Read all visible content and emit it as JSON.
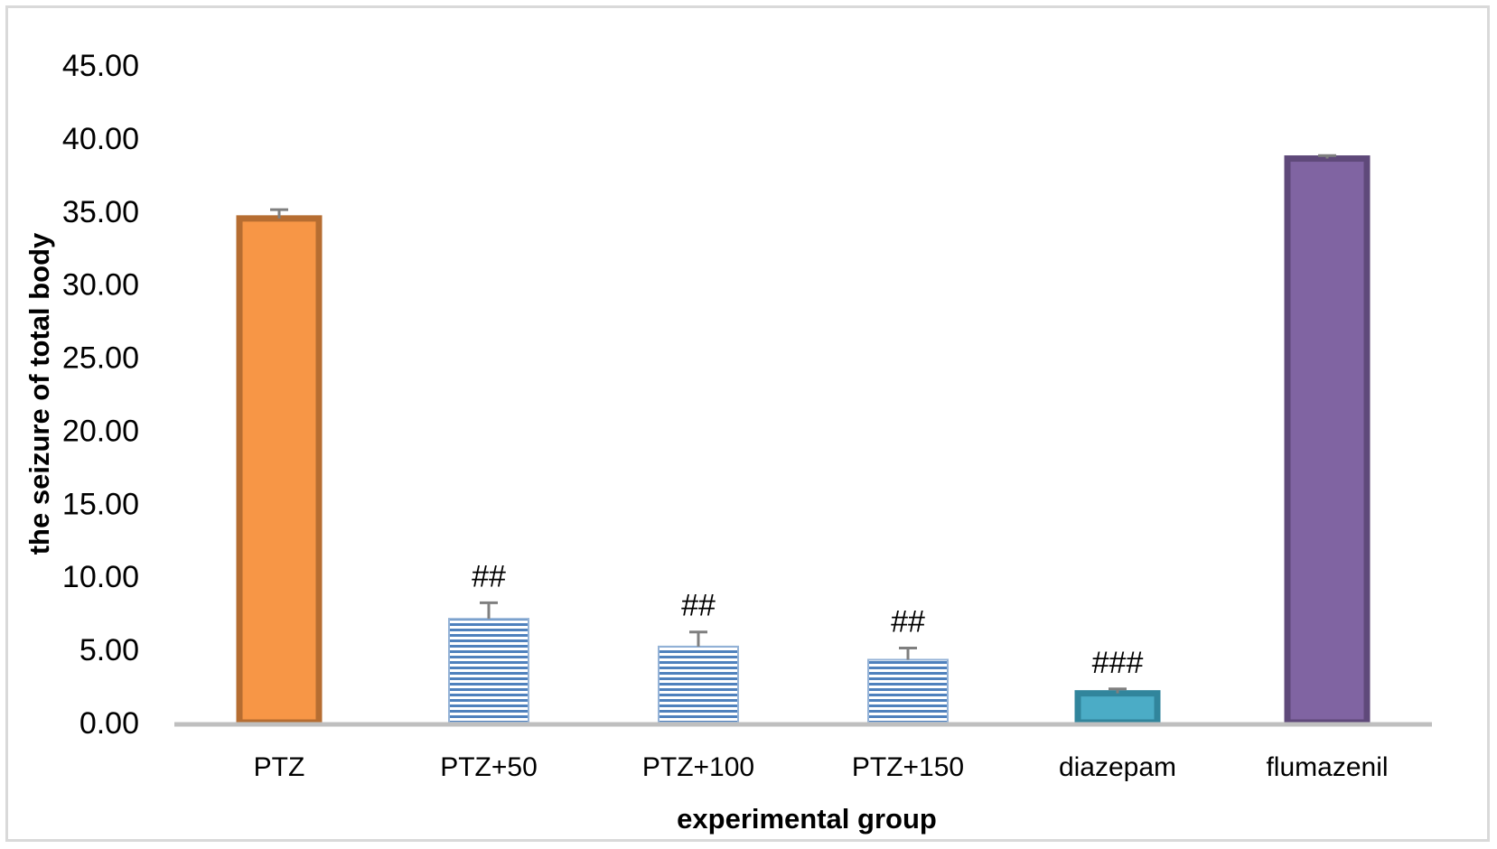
{
  "chart_data": {
    "type": "bar",
    "xlabel": "experimental group",
    "ylabel": "the seizure of total body",
    "ylim": [
      0,
      45
    ],
    "yticks": [
      "0.00",
      "5.00",
      "10.00",
      "15.00",
      "20.00",
      "25.00",
      "30.00",
      "35.00",
      "40.00",
      "45.00"
    ],
    "grid": false,
    "legend": "none",
    "categories": [
      "PTZ",
      "PTZ+50",
      "PTZ+100",
      "PTZ+150",
      "diazepam",
      "flumazenil"
    ],
    "values": [
      34.5,
      7.1,
      5.2,
      4.3,
      2.0,
      38.6
    ],
    "errors": [
      0.6,
      1.1,
      1.0,
      0.8,
      0.3,
      0.2
    ],
    "annotations": [
      "",
      "##",
      "##",
      "##",
      "###",
      ""
    ],
    "styles": [
      {
        "fill": "#f79646",
        "stroke": "#b66d31",
        "pattern": "solid"
      },
      {
        "fill": "#4f81bd",
        "stroke": "#95b3d7",
        "pattern": "horizontal-stripes"
      },
      {
        "fill": "#4f81bd",
        "stroke": "#95b3d7",
        "pattern": "horizontal-stripes"
      },
      {
        "fill": "#4f81bd",
        "stroke": "#95b3d7",
        "pattern": "horizontal-stripes"
      },
      {
        "fill": "#4bacc6",
        "stroke": "#31859c",
        "pattern": "solid"
      },
      {
        "fill": "#8064a2",
        "stroke": "#5f497a",
        "pattern": "solid"
      }
    ],
    "colors": {
      "axis": "#bfbfbf",
      "error_bar": "#7f7f7f",
      "frame": "#d9d9d9"
    }
  }
}
